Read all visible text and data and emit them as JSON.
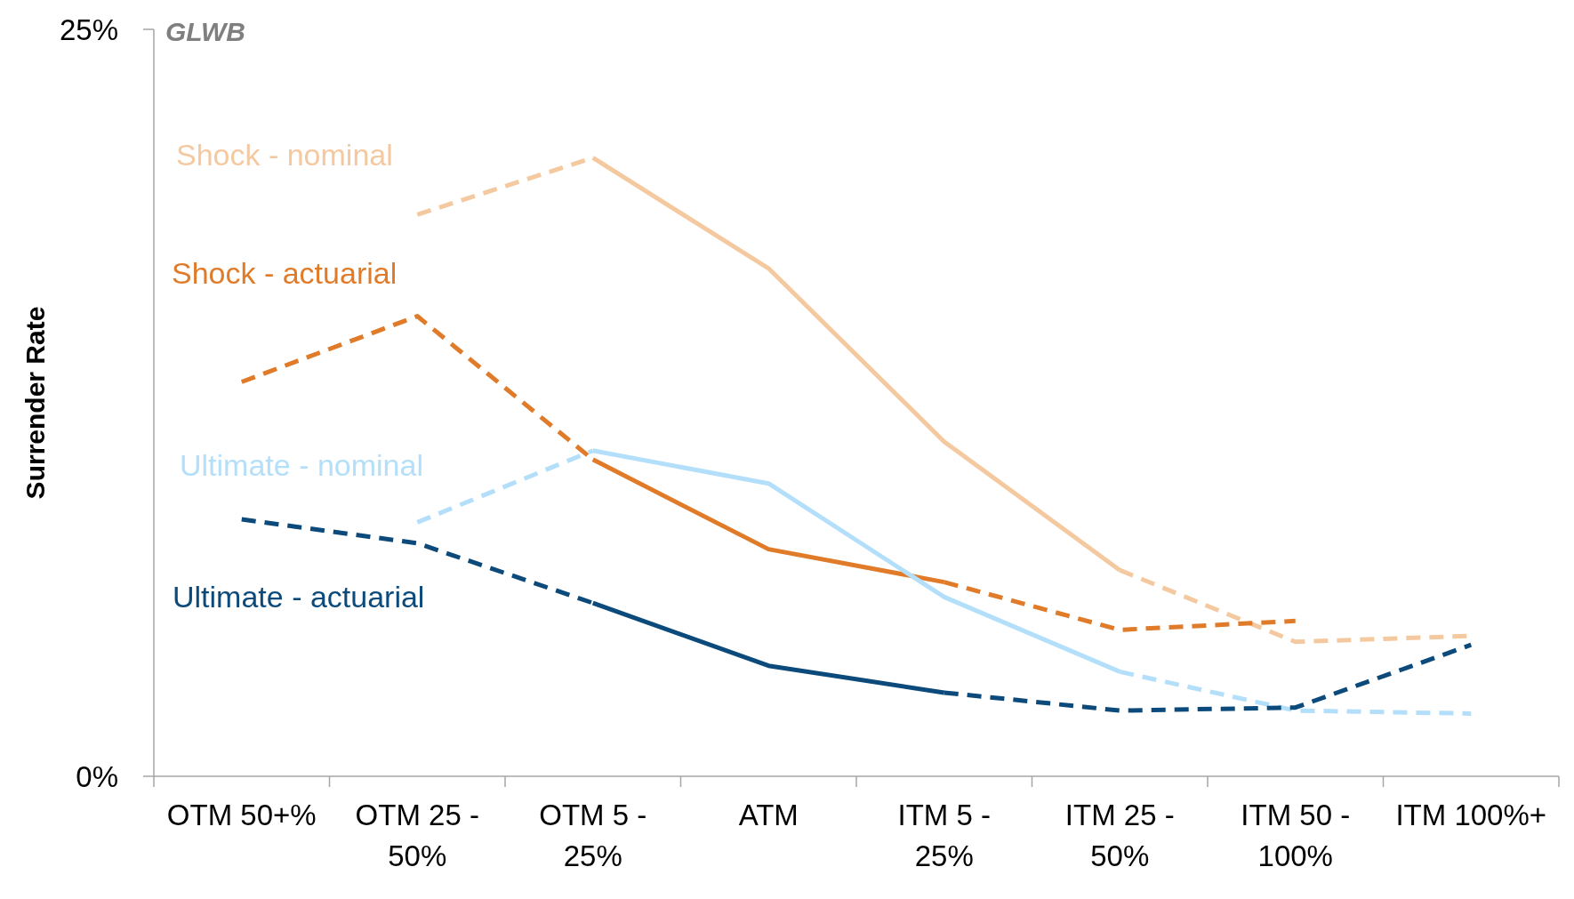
{
  "chart_data": {
    "type": "line",
    "title": "GLWB",
    "ylabel": "Surrender Rate",
    "categories": [
      "OTM 50+%",
      "OTM 25 - 50%",
      "OTM 5 - 25%",
      "ATM",
      "ITM 5 - 25%",
      "ITM 25 - 50%",
      "ITM 50 - 100%",
      "ITM 100%+"
    ],
    "ylim": [
      0,
      25
    ],
    "yticks": [
      {
        "value": 0,
        "label": "0%"
      },
      {
        "value": 25,
        "label": "25%"
      }
    ],
    "grid": false,
    "marker": "none",
    "series": [
      {
        "name": "Shock - nominal",
        "color": "#f4c9a0",
        "line_style": "solid",
        "values": [
          null,
          null,
          20.7,
          17.0,
          11.2,
          6.9,
          null,
          null
        ]
      },
      {
        "color": "#f4c9a0",
        "line_style": "dashed",
        "values": [
          null,
          18.8,
          20.7,
          null,
          null,
          6.9,
          4.5,
          4.7
        ]
      },
      {
        "name": "Shock - actuarial",
        "color": "#e07b2a",
        "line_style": "solid",
        "values": [
          null,
          null,
          10.6,
          7.6,
          6.5,
          null,
          null,
          null
        ]
      },
      {
        "color": "#e07b2a",
        "line_style": "dashed",
        "values": [
          13.2,
          15.4,
          10.6,
          null,
          6.5,
          4.9,
          5.2,
          null
        ]
      },
      {
        "name": "Ultimate - nominal",
        "color": "#b3dffa",
        "line_style": "solid",
        "values": [
          null,
          null,
          10.9,
          9.8,
          6.0,
          3.5,
          null,
          null
        ]
      },
      {
        "color": "#b3dffa",
        "line_style": "dashed",
        "values": [
          null,
          8.5,
          10.9,
          null,
          null,
          3.5,
          2.2,
          2.1
        ]
      },
      {
        "name": "Ultimate - actuarial",
        "color": "#0b4a7a",
        "line_style": "solid",
        "values": [
          null,
          null,
          5.8,
          3.7,
          2.8,
          null,
          null,
          null
        ]
      },
      {
        "color": "#0b4a7a",
        "line_style": "dashed",
        "values": [
          8.6,
          7.8,
          5.8,
          null,
          2.8,
          2.2,
          2.3,
          4.4
        ]
      }
    ]
  }
}
